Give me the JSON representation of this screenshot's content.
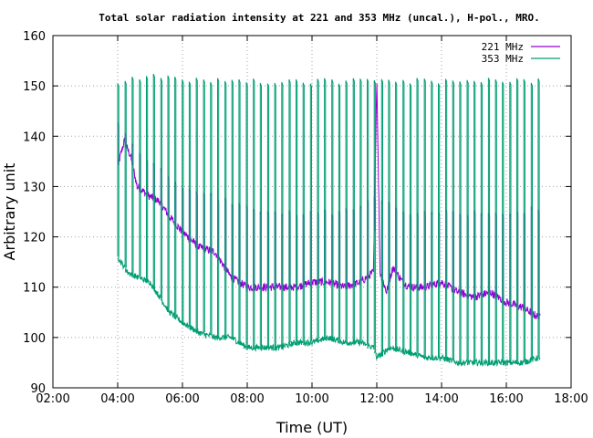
{
  "chart_data": {
    "type": "line",
    "title": "Total solar radiation intensity at 221 and 353 MHz (uncal.), H-pol., MRO.",
    "xlabel": "Time (UT)",
    "ylabel": "Arbitrary unit",
    "xlim": [
      2,
      18
    ],
    "ylim": [
      90,
      160
    ],
    "xticks": [
      {
        "v": 2,
        "label": "02:00"
      },
      {
        "v": 4,
        "label": "04:00"
      },
      {
        "v": 6,
        "label": "06:00"
      },
      {
        "v": 8,
        "label": "08:00"
      },
      {
        "v": 10,
        "label": "10:00"
      },
      {
        "v": 12,
        "label": "12:00"
      },
      {
        "v": 14,
        "label": "14:00"
      },
      {
        "v": 16,
        "label": "16:00"
      },
      {
        "v": 18,
        "label": "18:00"
      }
    ],
    "yticks": [
      {
        "v": 90,
        "label": "90"
      },
      {
        "v": 100,
        "label": "100"
      },
      {
        "v": 110,
        "label": "110"
      },
      {
        "v": 120,
        "label": "120"
      },
      {
        "v": 130,
        "label": "130"
      },
      {
        "v": 140,
        "label": "140"
      },
      {
        "v": 150,
        "label": "150"
      },
      {
        "v": 160,
        "label": "160"
      }
    ],
    "grid": true,
    "legend_position": "top-right",
    "series": [
      {
        "name": "221 MHz",
        "color": "#9400d3",
        "baseline": [
          [
            4.0,
            134
          ],
          [
            4.2,
            139
          ],
          [
            4.4,
            136
          ],
          [
            4.6,
            130
          ],
          [
            4.8,
            129
          ],
          [
            5.0,
            128
          ],
          [
            5.3,
            127
          ],
          [
            5.6,
            124
          ],
          [
            6.0,
            121
          ],
          [
            6.5,
            118
          ],
          [
            7.0,
            117
          ],
          [
            7.5,
            112
          ],
          [
            8.0,
            110
          ],
          [
            8.5,
            110
          ],
          [
            9.0,
            110
          ],
          [
            9.5,
            110
          ],
          [
            10.0,
            111
          ],
          [
            10.5,
            111
          ],
          [
            11.0,
            110
          ],
          [
            11.5,
            111
          ],
          [
            11.9,
            113
          ],
          [
            12.0,
            152
          ],
          [
            12.1,
            113
          ],
          [
            12.3,
            109
          ],
          [
            12.5,
            114
          ],
          [
            12.8,
            111
          ],
          [
            13.0,
            110
          ],
          [
            13.5,
            110
          ],
          [
            14.0,
            111
          ],
          [
            14.5,
            109
          ],
          [
            15.0,
            108
          ],
          [
            15.5,
            109
          ],
          [
            16.0,
            107
          ],
          [
            16.5,
            106
          ],
          [
            17.0,
            104
          ]
        ],
        "pulse_top": [
          [
            4.0,
            143
          ],
          [
            4.5,
            138
          ],
          [
            5.0,
            135
          ],
          [
            6.0,
            130
          ],
          [
            7.0,
            128
          ],
          [
            8.0,
            126
          ],
          [
            9.0,
            125
          ],
          [
            10.0,
            125
          ],
          [
            11.0,
            125
          ],
          [
            12.0,
            128
          ],
          [
            13.0,
            125
          ],
          [
            14.0,
            125
          ],
          [
            15.0,
            125
          ],
          [
            16.0,
            124
          ],
          [
            17.0,
            126
          ]
        ]
      },
      {
        "name": "353 MHz",
        "color": "#009e73",
        "baseline": [
          [
            4.0,
            116
          ],
          [
            4.3,
            113
          ],
          [
            4.6,
            112
          ],
          [
            5.0,
            111
          ],
          [
            5.3,
            108
          ],
          [
            5.6,
            105
          ],
          [
            6.0,
            103
          ],
          [
            6.5,
            101
          ],
          [
            7.0,
            100
          ],
          [
            7.5,
            100
          ],
          [
            8.0,
            98
          ],
          [
            8.5,
            98
          ],
          [
            9.0,
            98
          ],
          [
            9.5,
            99
          ],
          [
            10.0,
            99
          ],
          [
            10.5,
            100
          ],
          [
            11.0,
            99
          ],
          [
            11.5,
            99
          ],
          [
            11.9,
            98
          ],
          [
            12.0,
            96
          ],
          [
            12.4,
            98
          ],
          [
            13.0,
            97
          ],
          [
            13.5,
            96
          ],
          [
            14.0,
            96
          ],
          [
            14.5,
            95
          ],
          [
            15.0,
            95
          ],
          [
            15.5,
            95
          ],
          [
            16.0,
            95
          ],
          [
            16.5,
            95
          ],
          [
            17.0,
            96
          ]
        ],
        "pulse_top": [
          [
            4.0,
            151
          ],
          [
            5.0,
            152
          ],
          [
            6.0,
            151
          ],
          [
            7.0,
            151
          ],
          [
            8.0,
            151
          ],
          [
            9.0,
            151
          ],
          [
            10.0,
            151
          ],
          [
            11.0,
            151
          ],
          [
            12.0,
            151
          ],
          [
            13.0,
            151
          ],
          [
            14.0,
            151
          ],
          [
            15.0,
            151
          ],
          [
            16.0,
            151
          ],
          [
            17.0,
            151
          ]
        ]
      }
    ]
  }
}
